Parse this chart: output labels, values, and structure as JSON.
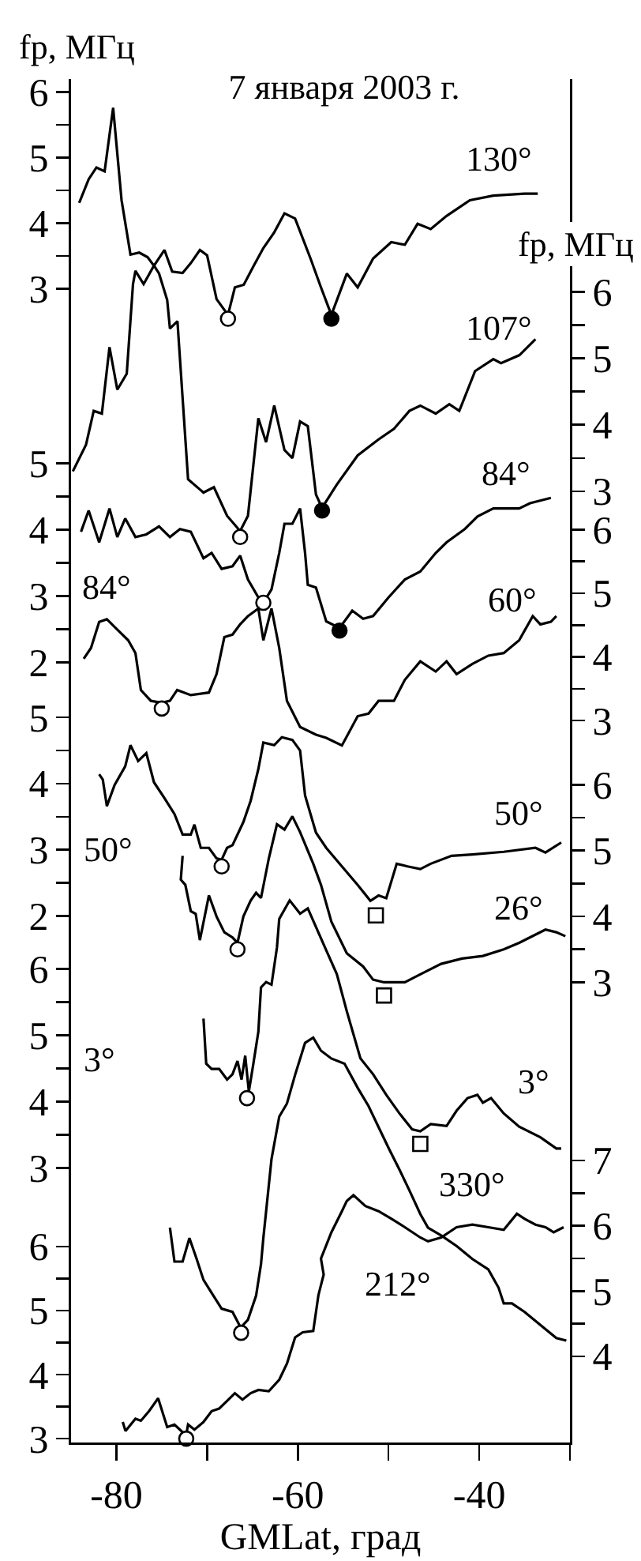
{
  "chart_data": [
    {
      "type": "line",
      "title": "7 января 2003 г.",
      "ylabel": "fp, МГц",
      "y2label": "fp, МГц",
      "tick_labels": "y",
      "xlim": [
        -85,
        -30
      ],
      "xticks": [
        -80,
        {
          "value": -70,
          "label": null
        },
        -60,
        {
          "value": -50,
          "label": null
        },
        -40,
        {
          "value": -30,
          "label": null
        }
      ],
      "ylim": [
        -14.61,
        6.2
      ],
      "yticks": [
        3,
        {
          "value": 3.5,
          "label": null
        },
        4,
        {
          "value": 4.5,
          "label": null
        },
        5,
        {
          "value": 5.5,
          "label": null
        },
        6
      ],
      "y2lim": [
        -11.33,
        9.21
      ],
      "y2ticks": [
        3,
        {
          "value": 3.5,
          "label": null
        },
        4,
        {
          "value": 4.5,
          "label": null
        },
        5,
        {
          "value": 5.5,
          "label": null
        },
        6
      ],
      "grid": false,
      "legend": false,
      "marker": "none",
      "line_style": "solid",
      "series": [
        {
          "name": "130°",
          "color": "#000000",
          "x": [
            -84.1,
            -83.06,
            -82.2,
            -81.3,
            -80.36,
            -79.43,
            -78.45,
            -77.48,
            -76.56,
            -75.86,
            -74.7,
            -73.85,
            -72.7,
            -71.8,
            -70.8,
            -70.0,
            -68.96,
            -67.7,
            -66.94,
            -65.96,
            -64.9,
            -63.8,
            -62.6,
            -61.47,
            -60.3,
            -58.6,
            -57.45,
            -56.3,
            -54.6,
            -53.4,
            -51.7,
            -49.7,
            -48.2,
            -46.8,
            -45.35,
            -43.6,
            -41.03,
            -38.45,
            -35.0,
            -33.55
          ],
          "values": [
            4.31,
            4.67,
            4.85,
            4.79,
            5.76,
            4.35,
            3.52,
            3.55,
            3.48,
            3.35,
            3.59,
            3.26,
            3.24,
            3.39,
            3.59,
            3.51,
            2.84,
            2.6,
            3.02,
            3.06,
            3.34,
            3.62,
            3.86,
            4.15,
            4.07,
            3.46,
            3.02,
            2.6,
            3.23,
            3.02,
            3.46,
            3.71,
            3.67,
            3.99,
            3.91,
            4.11,
            4.35,
            4.42,
            4.45,
            4.45
          ]
        },
        {
          "name": "107°",
          "axis": "y2",
          "color": "#000000",
          "x": [
            -84.8,
            -83.35,
            -82.5,
            -81.6,
            -80.76,
            -79.9,
            -78.86,
            -78.17,
            -77.9,
            -77.0,
            -75.86,
            -75.3,
            -74.4,
            -74.1,
            -73.27,
            -72.1,
            -70.4,
            -69.25,
            -67.8,
            -66.36,
            -65.5,
            -64.35,
            -63.5,
            -62.6,
            -61.47,
            -60.6,
            -59.75,
            -58.9,
            -58.0,
            -57.33,
            -55.7,
            -53.4,
            -51.1,
            -49.4,
            -47.7,
            -46.5,
            -44.8,
            -43.3,
            -42.2,
            -40.46,
            -38.45,
            -37.6,
            -35.57,
            -33.8
          ],
          "values": [
            3.3,
            3.7,
            4.21,
            4.17,
            5.17,
            4.53,
            4.77,
            6.12,
            6.32,
            6.12,
            6.4,
            6.28,
            5.88,
            5.45,
            5.56,
            3.18,
            2.98,
            3.06,
            2.63,
            2.4,
            2.63,
            4.1,
            3.74,
            4.29,
            3.62,
            3.5,
            4.05,
            3.98,
            2.95,
            2.75,
            3.1,
            3.54,
            3.78,
            3.94,
            4.21,
            4.29,
            4.17,
            4.31,
            4.21,
            4.81,
            4.99,
            4.93,
            5.05,
            5.29
          ]
        },
        {
          "type": "scatter",
          "marker": "circle",
          "color": "#ffffff",
          "x": [
            -67.7
          ],
          "values": [
            2.54
          ]
        },
        {
          "type": "scatter",
          "marker": "circle",
          "color": "#000000",
          "x": [
            -56.3
          ],
          "values": [
            2.54
          ]
        },
        {
          "type": "scatter",
          "axis": "y2",
          "marker": "circle",
          "color": "#ffffff",
          "x": [
            -66.36
          ],
          "values": [
            2.31
          ]
        },
        {
          "type": "scatter",
          "axis": "y2",
          "marker": "circle",
          "color": "#000000",
          "x": [
            -57.33
          ],
          "values": [
            2.71
          ]
        }
      ]
    },
    {
      "type": "line",
      "tick_labels": "y",
      "xlim": [
        -85,
        -30
      ],
      "xticks": [
        -80,
        {
          "value": -70,
          "label": null
        },
        -60,
        {
          "value": -50,
          "label": null
        },
        -40,
        {
          "value": -30,
          "label": null
        }
      ],
      "ylim": [
        -9.75,
        10.79
      ],
      "yticks": [
        2,
        {
          "value": 2.5,
          "label": null
        },
        3,
        {
          "value": 3.5,
          "label": null
        },
        4,
        {
          "value": 4.5,
          "label": null
        },
        5
      ],
      "y2lim": [
        -8.33,
        13.07
      ],
      "y2ticks": [
        3,
        {
          "value": 3.5,
          "label": null
        },
        4,
        {
          "value": 4.5,
          "label": null
        },
        5,
        {
          "value": 5.5,
          "label": null
        },
        6
      ],
      "grid": false,
      "legend": false,
      "marker": "none",
      "line_style": "solid",
      "series": [
        {
          "name": "84°",
          "color": "#000000",
          "x": [
            -83.9,
            -83.06,
            -81.9,
            -80.76,
            -79.9,
            -79.03,
            -77.9,
            -76.7,
            -75.3,
            -74.1,
            -72.99,
            -71.8,
            -70.4,
            -69.5,
            -68.4,
            -67.2,
            -66.36,
            -65.5,
            -64.35,
            -63.8,
            -62.9,
            -62.05,
            -61.47,
            -60.6,
            -59.75,
            -59.2,
            -58.9,
            -58.0,
            -56.87,
            -55.4,
            -54.0,
            -52.8,
            -51.7,
            -50.0,
            -48.2,
            -46.5,
            -44.8,
            -43.6,
            -41.6,
            -40.2,
            -38.45,
            -35.6,
            -34.4,
            -32.1
          ],
          "values": [
            3.97,
            4.29,
            3.81,
            4.32,
            3.89,
            4.17,
            3.89,
            3.93,
            4.05,
            3.89,
            4.01,
            3.97,
            3.57,
            3.65,
            3.41,
            3.45,
            3.61,
            3.25,
            2.98,
            2.9,
            3.1,
            3.65,
            4.09,
            4.09,
            4.32,
            3.65,
            3.17,
            3.13,
            2.62,
            2.52,
            2.78,
            2.66,
            2.7,
            2.98,
            3.25,
            3.37,
            3.65,
            3.81,
            4.01,
            4.2,
            4.32,
            4.32,
            4.4,
            4.48
          ]
        },
        {
          "name": "60°",
          "axis": "y2",
          "color": "#000000",
          "x": [
            -83.6,
            -82.8,
            -81.9,
            -81.05,
            -80.2,
            -78.7,
            -77.9,
            -77.3,
            -76.2,
            -75.0,
            -74.1,
            -73.3,
            -71.8,
            -69.8,
            -68.96,
            -68.1,
            -67.2,
            -66.36,
            -65.5,
            -64.35,
            -63.8,
            -62.9,
            -62.05,
            -61.2,
            -59.75,
            -58.0,
            -56.87,
            -55.14,
            -53.4,
            -52.2,
            -51.1,
            -49.4,
            -48.2,
            -46.5,
            -44.8,
            -43.6,
            -42.5,
            -40.75,
            -39.0,
            -37.3,
            -35.6,
            -34.1,
            -33.26,
            -32.1,
            -31.5
          ],
          "values": [
            3.97,
            4.14,
            4.55,
            4.59,
            4.47,
            4.26,
            4.06,
            3.48,
            3.31,
            3.28,
            3.31,
            3.48,
            3.4,
            3.44,
            3.73,
            4.31,
            4.35,
            4.51,
            4.64,
            4.76,
            4.26,
            4.76,
            4.14,
            3.31,
            2.9,
            2.78,
            2.73,
            2.61,
            3.07,
            3.11,
            3.31,
            3.31,
            3.64,
            3.93,
            3.77,
            3.93,
            3.73,
            3.89,
            4.02,
            4.06,
            4.26,
            4.64,
            4.51,
            4.55,
            4.64
          ]
        },
        {
          "type": "scatter",
          "marker": "circle",
          "color": "#ffffff",
          "x": [
            -63.8
          ],
          "values": [
            2.9
          ]
        },
        {
          "type": "scatter",
          "marker": "circle",
          "color": "#000000",
          "x": [
            -55.4
          ],
          "values": [
            2.48
          ]
        },
        {
          "type": "scatter",
          "axis": "y2",
          "marker": "circle",
          "color": "#ffffff",
          "x": [
            -75.0
          ],
          "values": [
            3.19
          ]
        }
      ]
    },
    {
      "type": "line",
      "tick_labels": "y",
      "xlim": [
        -85,
        -30
      ],
      "xticks": [
        -80,
        {
          "value": -70,
          "label": null
        },
        -60,
        {
          "value": -50,
          "label": null
        },
        -40,
        {
          "value": -30,
          "label": null
        }
      ],
      "ylim": [
        -5.95,
        14.64
      ],
      "yticks": [
        2,
        {
          "value": 2.5,
          "label": null
        },
        3,
        {
          "value": 3.5,
          "label": null
        },
        4,
        {
          "value": 4.5,
          "label": null
        },
        5
      ],
      "y2lim": [
        -3.99,
        16.72
      ],
      "y2ticks": [
        3,
        {
          "value": 3.5,
          "label": null
        },
        4,
        {
          "value": 4.5,
          "label": null
        },
        5,
        {
          "value": 5.5,
          "label": null
        },
        6
      ],
      "grid": false,
      "legend": false,
      "marker": "none",
      "line_style": "solid",
      "series": [
        {
          "name": "50°",
          "color": "#000000",
          "x": [
            -81.9,
            -81.5,
            -81.05,
            -80.2,
            -79.03,
            -78.45,
            -77.6,
            -76.7,
            -75.86,
            -74.7,
            -73.6,
            -72.7,
            -71.8,
            -71.4,
            -70.7,
            -69.8,
            -68.96,
            -68.4,
            -67.8,
            -67.2,
            -66.0,
            -65.2,
            -64.35,
            -63.8,
            -62.6,
            -61.76,
            -60.6,
            -59.75,
            -59.2,
            -58.0,
            -56.87,
            -55.14,
            -53.4,
            -52.0,
            -51.1,
            -50.25,
            -49.1,
            -47.9,
            -46.5,
            -45.35,
            -43.05,
            -40.75,
            -37.3,
            -33.8,
            -32.7,
            -30.96
          ],
          "values": [
            4.14,
            4.06,
            3.66,
            3.98,
            4.26,
            4.58,
            4.34,
            4.46,
            4.02,
            3.78,
            3.54,
            3.23,
            3.23,
            3.38,
            3.03,
            3.03,
            2.87,
            2.85,
            3.03,
            3.07,
            3.42,
            3.74,
            4.22,
            4.62,
            4.58,
            4.7,
            4.66,
            4.5,
            3.82,
            3.26,
            3.03,
            2.75,
            2.47,
            2.23,
            2.31,
            2.27,
            2.79,
            2.75,
            2.71,
            2.79,
            2.91,
            2.93,
            2.97,
            3.03,
            2.96,
            3.11
          ]
        },
        {
          "name": "26°",
          "axis": "y2",
          "color": "#000000",
          "x": [
            -72.7,
            -72.9,
            -72.4,
            -71.8,
            -71.26,
            -70.8,
            -69.8,
            -68.96,
            -68.1,
            -67.2,
            -66.65,
            -66.0,
            -65.2,
            -64.6,
            -64.06,
            -63.2,
            -62.3,
            -61.47,
            -60.6,
            -59.75,
            -58.3,
            -57.45,
            -56.3,
            -54.6,
            -52.8,
            -51.7,
            -50.5,
            -48.2,
            -46.5,
            -44.2,
            -41.9,
            -39.6,
            -37.3,
            -35.6,
            -32.7,
            -31.5,
            -30.5
          ],
          "values": [
            4.92,
            4.56,
            4.48,
            4.08,
            4.04,
            3.64,
            4.32,
            4.0,
            3.76,
            3.68,
            3.6,
            4.0,
            4.24,
            4.36,
            4.28,
            4.88,
            5.4,
            5.32,
            5.52,
            5.28,
            4.8,
            4.48,
            3.92,
            3.44,
            3.24,
            3.04,
            3.0,
            3.0,
            3.12,
            3.28,
            3.36,
            3.4,
            3.5,
            3.6,
            3.8,
            3.76,
            3.7
          ]
        },
        {
          "type": "scatter",
          "marker": "circle",
          "color": "#ffffff",
          "x": [
            -68.4
          ],
          "values": [
            2.75
          ]
        },
        {
          "type": "scatter",
          "marker": "square",
          "color": "#ffffff",
          "x": [
            -51.4
          ],
          "values": [
            2.01
          ]
        },
        {
          "type": "scatter",
          "axis": "y2",
          "marker": "circle",
          "color": "#ffffff",
          "x": [
            -66.65
          ],
          "values": [
            3.5
          ]
        },
        {
          "type": "scatter",
          "axis": "y2",
          "marker": "square",
          "color": "#ffffff",
          "x": [
            -50.5
          ],
          "values": [
            2.8
          ]
        }
      ]
    },
    {
      "type": "line",
      "tick_labels": "y",
      "xlim": [
        -85,
        -30
      ],
      "xticks": [
        -80,
        {
          "value": -70,
          "label": null
        },
        -60,
        {
          "value": -50,
          "label": null
        },
        -40,
        {
          "value": -30,
          "label": null
        }
      ],
      "ylim": [
        -1.14,
        19.41
      ],
      "yticks": [
        3,
        {
          "value": 3.5,
          "label": null
        },
        4,
        {
          "value": 4.5,
          "label": null
        },
        5,
        {
          "value": 5.5,
          "label": null
        },
        6
      ],
      "y2lim": [
        2.68,
        23.56
      ],
      "y2ticks": [
        4,
        {
          "value": 4.5,
          "label": null
        },
        5,
        {
          "value": 5.5,
          "label": null
        },
        6,
        {
          "value": 6.5,
          "label": null
        },
        7
      ],
      "grid": false,
      "legend": false,
      "marker": "none",
      "line_style": "solid",
      "series": [
        {
          "name": "3°",
          "color": "#000000",
          "x": [
            -70.4,
            -70.1,
            -69.5,
            -68.67,
            -67.8,
            -67.2,
            -66.65,
            -66.2,
            -65.8,
            -65.4,
            -64.9,
            -64.35,
            -64.06,
            -63.5,
            -62.9,
            -62.3,
            -62.05,
            -60.9,
            -59.75,
            -58.9,
            -58.0,
            -56.87,
            -55.7,
            -54.6,
            -53.1,
            -51.7,
            -50.25,
            -48.8,
            -47.4,
            -46.5,
            -45.35,
            -43.6,
            -42.5,
            -41.3,
            -40.2,
            -39.6,
            -38.7,
            -37.3,
            -35.6,
            -33.26,
            -31.5,
            -30.96
          ],
          "values": [
            5.25,
            4.57,
            4.49,
            4.49,
            4.33,
            4.41,
            4.61,
            4.33,
            4.69,
            4.15,
            4.57,
            5.05,
            5.72,
            5.8,
            5.76,
            6.32,
            6.75,
            7.03,
            6.83,
            6.91,
            6.63,
            6.28,
            5.92,
            5.36,
            4.65,
            4.41,
            4.1,
            3.82,
            3.58,
            3.55,
            3.66,
            3.63,
            3.86,
            4.05,
            4.1,
            3.98,
            4.05,
            3.82,
            3.62,
            3.46,
            3.29,
            3.29
          ]
        },
        {
          "name": "330°",
          "axis": "y2",
          "color": "#000000",
          "x": [
            -74.1,
            -73.6,
            -72.7,
            -71.95,
            -71.15,
            -70.4,
            -69.5,
            -68.4,
            -67.2,
            -66.3,
            -65.5,
            -64.6,
            -64.06,
            -63.8,
            -62.9,
            -62.05,
            -61.2,
            -60.3,
            -59.2,
            -58.3,
            -57.45,
            -56.3,
            -54.85,
            -53.4,
            -52.2,
            -51.1,
            -49.96,
            -48.8,
            -47.7,
            -46.5,
            -45.65,
            -44.2,
            -42.5,
            -40.75,
            -39.0,
            -37.87,
            -37.3,
            -36.4,
            -35.0,
            -33.26,
            -31.5,
            -30.4
          ],
          "values": [
            5.97,
            5.45,
            5.45,
            5.81,
            5.49,
            5.17,
            4.97,
            4.73,
            4.68,
            4.44,
            4.56,
            4.93,
            5.41,
            5.81,
            7.02,
            7.67,
            7.87,
            8.31,
            8.8,
            8.88,
            8.68,
            8.56,
            8.48,
            8.11,
            7.83,
            7.51,
            7.18,
            6.86,
            6.54,
            6.18,
            5.97,
            5.85,
            5.69,
            5.49,
            5.33,
            5.05,
            4.81,
            4.81,
            4.68,
            4.48,
            4.28,
            4.24
          ]
        },
        {
          "type": "scatter",
          "marker": "circle",
          "color": "#ffffff",
          "x": [
            -65.6
          ],
          "values": [
            4.05
          ]
        },
        {
          "type": "scatter",
          "marker": "square",
          "color": "#ffffff",
          "x": [
            -46.5
          ],
          "values": [
            3.36
          ]
        },
        {
          "type": "scatter",
          "axis": "y2",
          "marker": "circle",
          "color": "#ffffff",
          "x": [
            -66.25
          ],
          "values": [
            4.36
          ]
        }
      ]
    },
    {
      "type": "line",
      "xlabel": "GMLat, град",
      "xlim": [
        -85,
        -30
      ],
      "xticks": [
        -80,
        {
          "value": -70,
          "label": null
        },
        -60,
        {
          "value": -50,
          "label": null
        },
        -40,
        {
          "value": -30,
          "label": null
        }
      ],
      "ylim": [
        2.94,
        24.22
      ],
      "yticks": [
        3,
        {
          "value": 3.5,
          "label": null
        },
        4,
        {
          "value": 4.5,
          "label": null
        },
        5,
        {
          "value": 5.5,
          "label": null
        },
        6
      ],
      "grid": false,
      "legend": false,
      "marker": "none",
      "line_style": "solid",
      "series": [
        {
          "name": "212°",
          "color": "#000000",
          "x": [
            -79.3,
            -79.0,
            -77.9,
            -77.3,
            -76.4,
            -75.4,
            -74.4,
            -73.6,
            -72.7,
            -72.3,
            -72.1,
            -71.4,
            -70.4,
            -69.5,
            -68.67,
            -67.8,
            -66.94,
            -66.1,
            -65.2,
            -64.35,
            -63.2,
            -62.05,
            -61.2,
            -60.3,
            -59.46,
            -58.3,
            -57.73,
            -57.15,
            -57.45,
            -56.3,
            -55.14,
            -54.6,
            -53.87,
            -52.55,
            -51.1,
            -49.67,
            -48.2,
            -46.5,
            -45.65,
            -44.2,
            -42.5,
            -40.75,
            -39.0,
            -37.3,
            -35.85,
            -35.0,
            -33.8,
            -32.7,
            -31.8,
            -30.7
          ],
          "values": [
            3.26,
            3.12,
            3.31,
            3.28,
            3.43,
            3.63,
            3.18,
            3.22,
            3.1,
            3.06,
            3.22,
            3.14,
            3.26,
            3.43,
            3.47,
            3.59,
            3.71,
            3.61,
            3.71,
            3.76,
            3.74,
            3.92,
            4.17,
            4.58,
            4.66,
            4.68,
            5.24,
            5.56,
            5.81,
            6.22,
            6.55,
            6.71,
            6.8,
            6.63,
            6.55,
            6.43,
            6.3,
            6.14,
            6.08,
            6.14,
            6.3,
            6.34,
            6.3,
            6.26,
            6.51,
            6.43,
            6.34,
            6.3,
            6.22,
            6.3
          ]
        },
        {
          "type": "scatter",
          "marker": "circle",
          "color": "#ffffff",
          "x": [
            -72.3
          ],
          "values": [
            3.0
          ]
        }
      ]
    }
  ]
}
